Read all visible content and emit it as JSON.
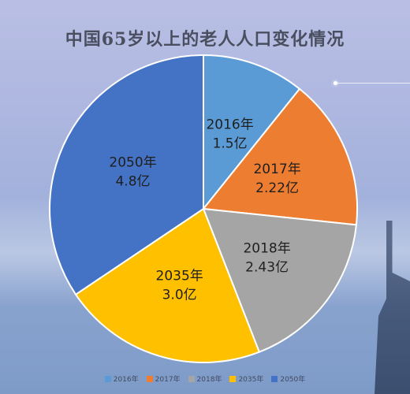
{
  "chart_data": {
    "type": "pie",
    "title": "中国65岁以上的老人人口变化情况",
    "slices": [
      {
        "name": "2016年",
        "value": 1.5,
        "label_year": "2016年",
        "label_value": "1.5亿",
        "color": "#5b9bd5"
      },
      {
        "name": "2017年",
        "value": 2.22,
        "label_year": "2017年",
        "label_value": "2.22亿",
        "color": "#ed7d31"
      },
      {
        "name": "2018年",
        "value": 2.43,
        "label_year": "2018年",
        "label_value": "2.43亿",
        "color": "#a5a5a5"
      },
      {
        "name": "2035年",
        "value": 3.0,
        "label_year": "2035年",
        "label_value": "3.0亿",
        "color": "#ffc000"
      },
      {
        "name": "2050年",
        "value": 4.8,
        "label_year": "2050年",
        "label_value": "4.8亿",
        "color": "#4472c4"
      }
    ],
    "legend_position": "bottom"
  }
}
